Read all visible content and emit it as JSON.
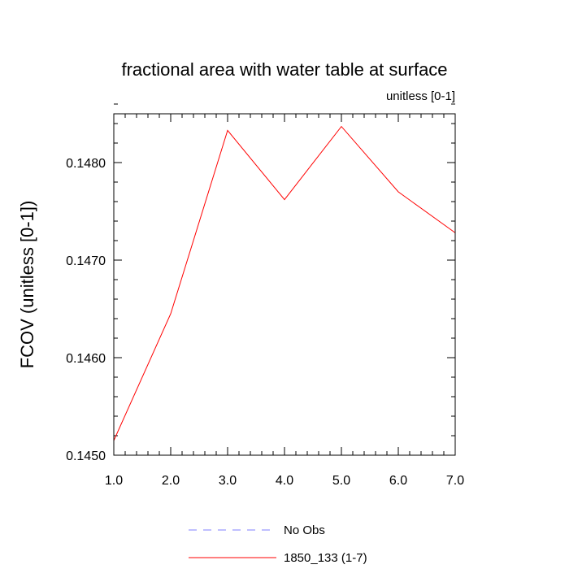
{
  "chart_data": {
    "type": "line",
    "title": "fractional area with water table at surface",
    "subtitle": "unitless [0-1]",
    "xlabel": "",
    "ylabel": "FCOV  (unitless [0-1])",
    "xlim": [
      1,
      7
    ],
    "ylim": [
      0.145,
      0.1485
    ],
    "x_ticks": [
      "1.0",
      "2.0",
      "3.0",
      "4.0",
      "5.0",
      "6.0",
      "7.0"
    ],
    "y_ticks": [
      "0.1450",
      "0.1460",
      "0.1470",
      "0.1480"
    ],
    "grid": false,
    "legend_position": "bottom",
    "series": [
      {
        "name": "No Obs",
        "color": "#7f7fff",
        "dash": "dashed",
        "x": [],
        "y": []
      },
      {
        "name": "1850_133 (1-7)",
        "color": "#ff0000",
        "dash": "solid",
        "x": [
          1,
          2,
          3,
          4,
          5,
          6,
          7
        ],
        "y": [
          0.14515,
          0.14645,
          0.14833,
          0.14762,
          0.14837,
          0.1477,
          0.14728
        ]
      }
    ]
  }
}
